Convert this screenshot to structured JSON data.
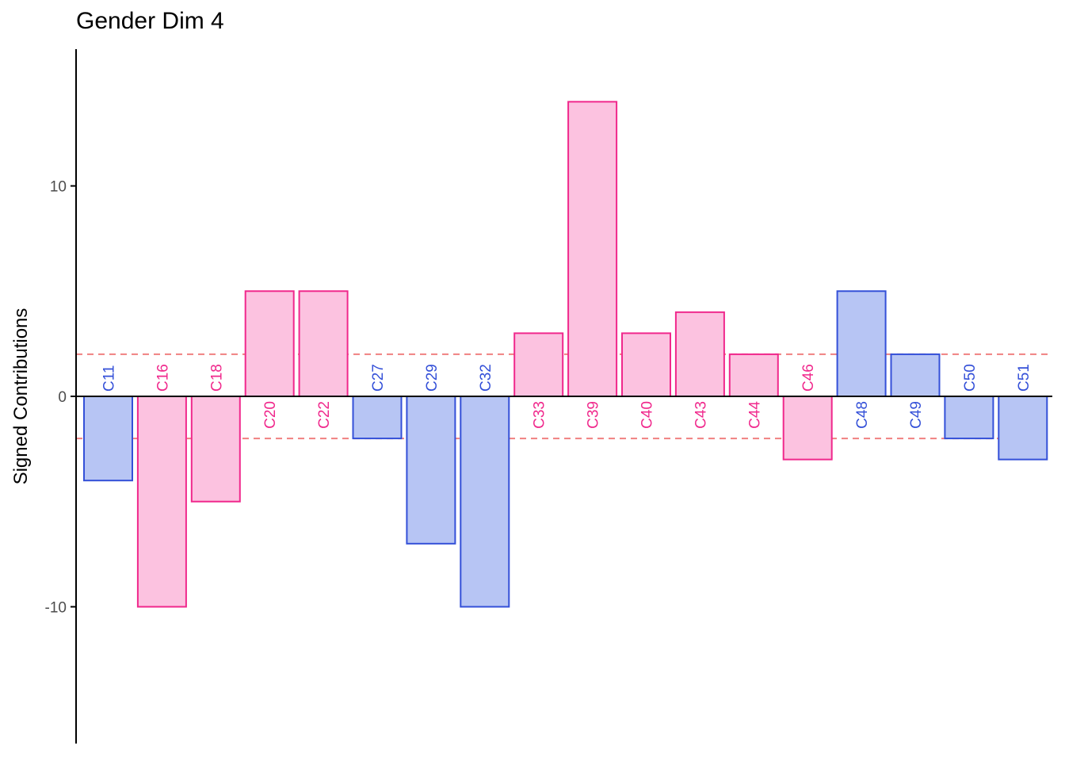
{
  "chart_data": {
    "type": "bar",
    "title": "Gender Dim 4",
    "xlabel": "",
    "ylabel": "Signed Contributions",
    "ylim": [
      -16.5,
      16.5
    ],
    "yticks": [
      -10,
      0,
      10
    ],
    "threshold_lines": [
      2,
      -2
    ],
    "categories": [
      "C11",
      "C16",
      "C18",
      "C20",
      "C22",
      "C27",
      "C29",
      "C32",
      "C33",
      "C39",
      "C40",
      "C43",
      "C44",
      "C46",
      "C48",
      "C49",
      "C50",
      "C51"
    ],
    "values": [
      -4,
      -10,
      -5,
      5,
      5,
      -2,
      -7,
      -10,
      3,
      14,
      3,
      4,
      2,
      -3,
      5,
      2,
      -2,
      -3
    ],
    "groups": [
      "blue",
      "pink",
      "pink",
      "pink",
      "pink",
      "blue",
      "blue",
      "blue",
      "pink",
      "pink",
      "pink",
      "pink",
      "pink",
      "pink",
      "blue",
      "blue",
      "blue",
      "blue"
    ],
    "grid": false,
    "legend": "none"
  },
  "colors": {
    "pink_fill": "#fcc2e0",
    "pink_stroke": "#f0288c",
    "blue_fill": "#b7c5f4",
    "blue_stroke": "#3450d8",
    "threshold": "#f08080",
    "axis": "#000000",
    "tick_text": "#4d4d4d"
  }
}
